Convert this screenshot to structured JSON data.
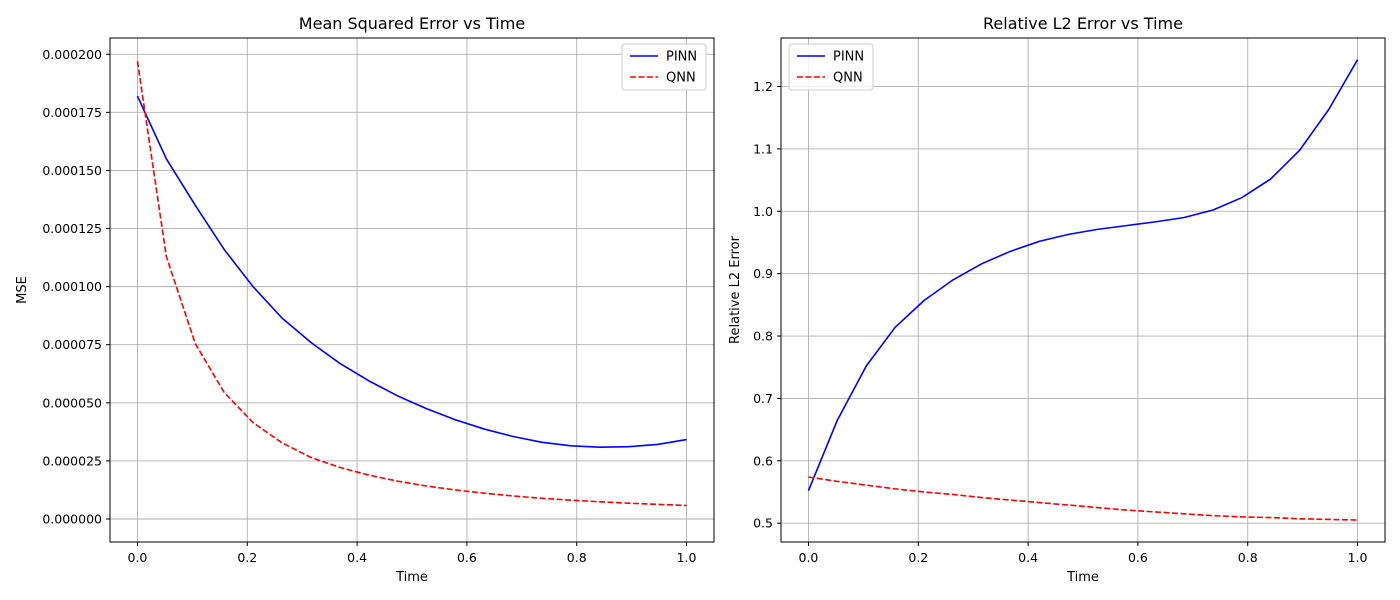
{
  "chart_data": [
    {
      "type": "line",
      "title": "Mean Squared Error vs Time",
      "xlabel": "Time",
      "ylabel": "MSE",
      "xlim": [
        -0.05,
        1.05
      ],
      "ylim": [
        -9.9e-06,
        0.000207
      ],
      "xticks": [
        0.0,
        0.2,
        0.4,
        0.6,
        0.8,
        1.0
      ],
      "xtick_labels": [
        "0.0",
        "0.2",
        "0.4",
        "0.6",
        "0.8",
        "1.0"
      ],
      "yticks": [
        0,
        2.5e-05,
        5e-05,
        7.5e-05,
        0.0001,
        0.000125,
        0.00015,
        0.000175,
        0.0002
      ],
      "ytick_labels": [
        "0.000000",
        "0.000025",
        "0.000050",
        "0.000075",
        "0.000100",
        "0.000125",
        "0.000150",
        "0.000175",
        "0.000200"
      ],
      "grid": true,
      "legend_position": "top-right",
      "x": [
        0.0,
        0.0526,
        0.1053,
        0.1579,
        0.2105,
        0.2632,
        0.3158,
        0.3684,
        0.4211,
        0.4737,
        0.5263,
        0.5789,
        0.6316,
        0.6842,
        0.7368,
        0.7895,
        0.8421,
        0.8947,
        0.9474,
        1.0
      ],
      "series": [
        {
          "name": "PINN",
          "color": "#0000ff",
          "style": "solid",
          "values": [
            0.000182,
            0.000155,
            0.000135,
            0.000116,
            0.0001,
            8.65e-05,
            7.6e-05,
            6.7e-05,
            5.95e-05,
            5.3e-05,
            4.75e-05,
            4.27e-05,
            3.87e-05,
            3.55e-05,
            3.3e-05,
            3.15e-05,
            3.09e-05,
            3.11e-05,
            3.21e-05,
            3.42e-05
          ]
        },
        {
          "name": "QNN",
          "color": "#ff0000",
          "style": "dashed",
          "values": [
            0.000197,
            0.000113,
            7.55e-05,
            5.45e-05,
            4.15e-05,
            3.28e-05,
            2.65e-05,
            2.22e-05,
            1.89e-05,
            1.63e-05,
            1.42e-05,
            1.25e-05,
            1.11e-05,
            9.9e-06,
            8.9e-06,
            8.1e-06,
            7.4e-06,
            6.8e-06,
            6.3e-06,
            5.8e-06
          ]
        }
      ]
    },
    {
      "type": "line",
      "title": "Relative L2 Error vs Time",
      "xlabel": "Time",
      "ylabel": "Relative L2 Error",
      "xlim": [
        -0.05,
        1.05
      ],
      "ylim": [
        0.4698,
        1.2778
      ],
      "xticks": [
        0.0,
        0.2,
        0.4,
        0.6,
        0.8,
        1.0
      ],
      "xtick_labels": [
        "0.0",
        "0.2",
        "0.4",
        "0.6",
        "0.8",
        "1.0"
      ],
      "yticks": [
        0.5,
        0.6,
        0.7,
        0.8,
        0.9,
        1.0,
        1.1,
        1.2
      ],
      "ytick_labels": [
        "0.5",
        "0.6",
        "0.7",
        "0.8",
        "0.9",
        "1.0",
        "1.1",
        "1.2"
      ],
      "grid": true,
      "legend_position": "top-left",
      "x": [
        0.0,
        0.0526,
        0.1053,
        0.1579,
        0.2105,
        0.2632,
        0.3158,
        0.3684,
        0.4211,
        0.4737,
        0.5263,
        0.5789,
        0.6316,
        0.6842,
        0.7368,
        0.7895,
        0.8421,
        0.8947,
        0.9474,
        1.0
      ],
      "series": [
        {
          "name": "PINN",
          "color": "#0000ff",
          "style": "solid",
          "values": [
            0.552,
            0.665,
            0.752,
            0.814,
            0.857,
            0.89,
            0.916,
            0.936,
            0.952,
            0.963,
            0.971,
            0.977,
            0.983,
            0.99,
            1.002,
            1.022,
            1.052,
            1.098,
            1.163,
            1.243
          ]
        },
        {
          "name": "QNN",
          "color": "#ff0000",
          "style": "dashed",
          "values": [
            0.574,
            0.567,
            0.561,
            0.555,
            0.55,
            0.546,
            0.541,
            0.537,
            0.533,
            0.529,
            0.525,
            0.521,
            0.518,
            0.515,
            0.512,
            0.51,
            0.509,
            0.507,
            0.506,
            0.505
          ]
        }
      ]
    }
  ]
}
